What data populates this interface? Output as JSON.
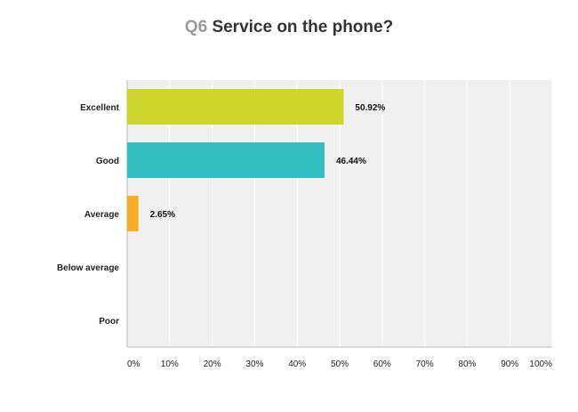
{
  "chart_data": {
    "type": "bar",
    "orientation": "horizontal",
    "title_prefix": "Q6",
    "title": "Service on the phone?",
    "categories": [
      "Excellent",
      "Good",
      "Average",
      "Below average",
      "Poor"
    ],
    "values": [
      50.92,
      46.44,
      2.65,
      0,
      0
    ],
    "value_labels": [
      "50.92%",
      "46.44%",
      "2.65%",
      "",
      ""
    ],
    "bar_colors": [
      "#cdd42a",
      "#33bfc1",
      "#f5ae24",
      "#cccccc",
      "#cccccc"
    ],
    "xlim": [
      0,
      100
    ],
    "x_ticks": [
      0,
      10,
      20,
      30,
      40,
      50,
      60,
      70,
      80,
      90,
      100
    ],
    "x_tick_labels": [
      "0%",
      "10%",
      "20%",
      "30%",
      "40%",
      "50%",
      "60%",
      "70%",
      "80%",
      "90%",
      "100%"
    ],
    "grid": true,
    "plot_background": "#f0f0f0",
    "grid_color": "#ffffff"
  }
}
